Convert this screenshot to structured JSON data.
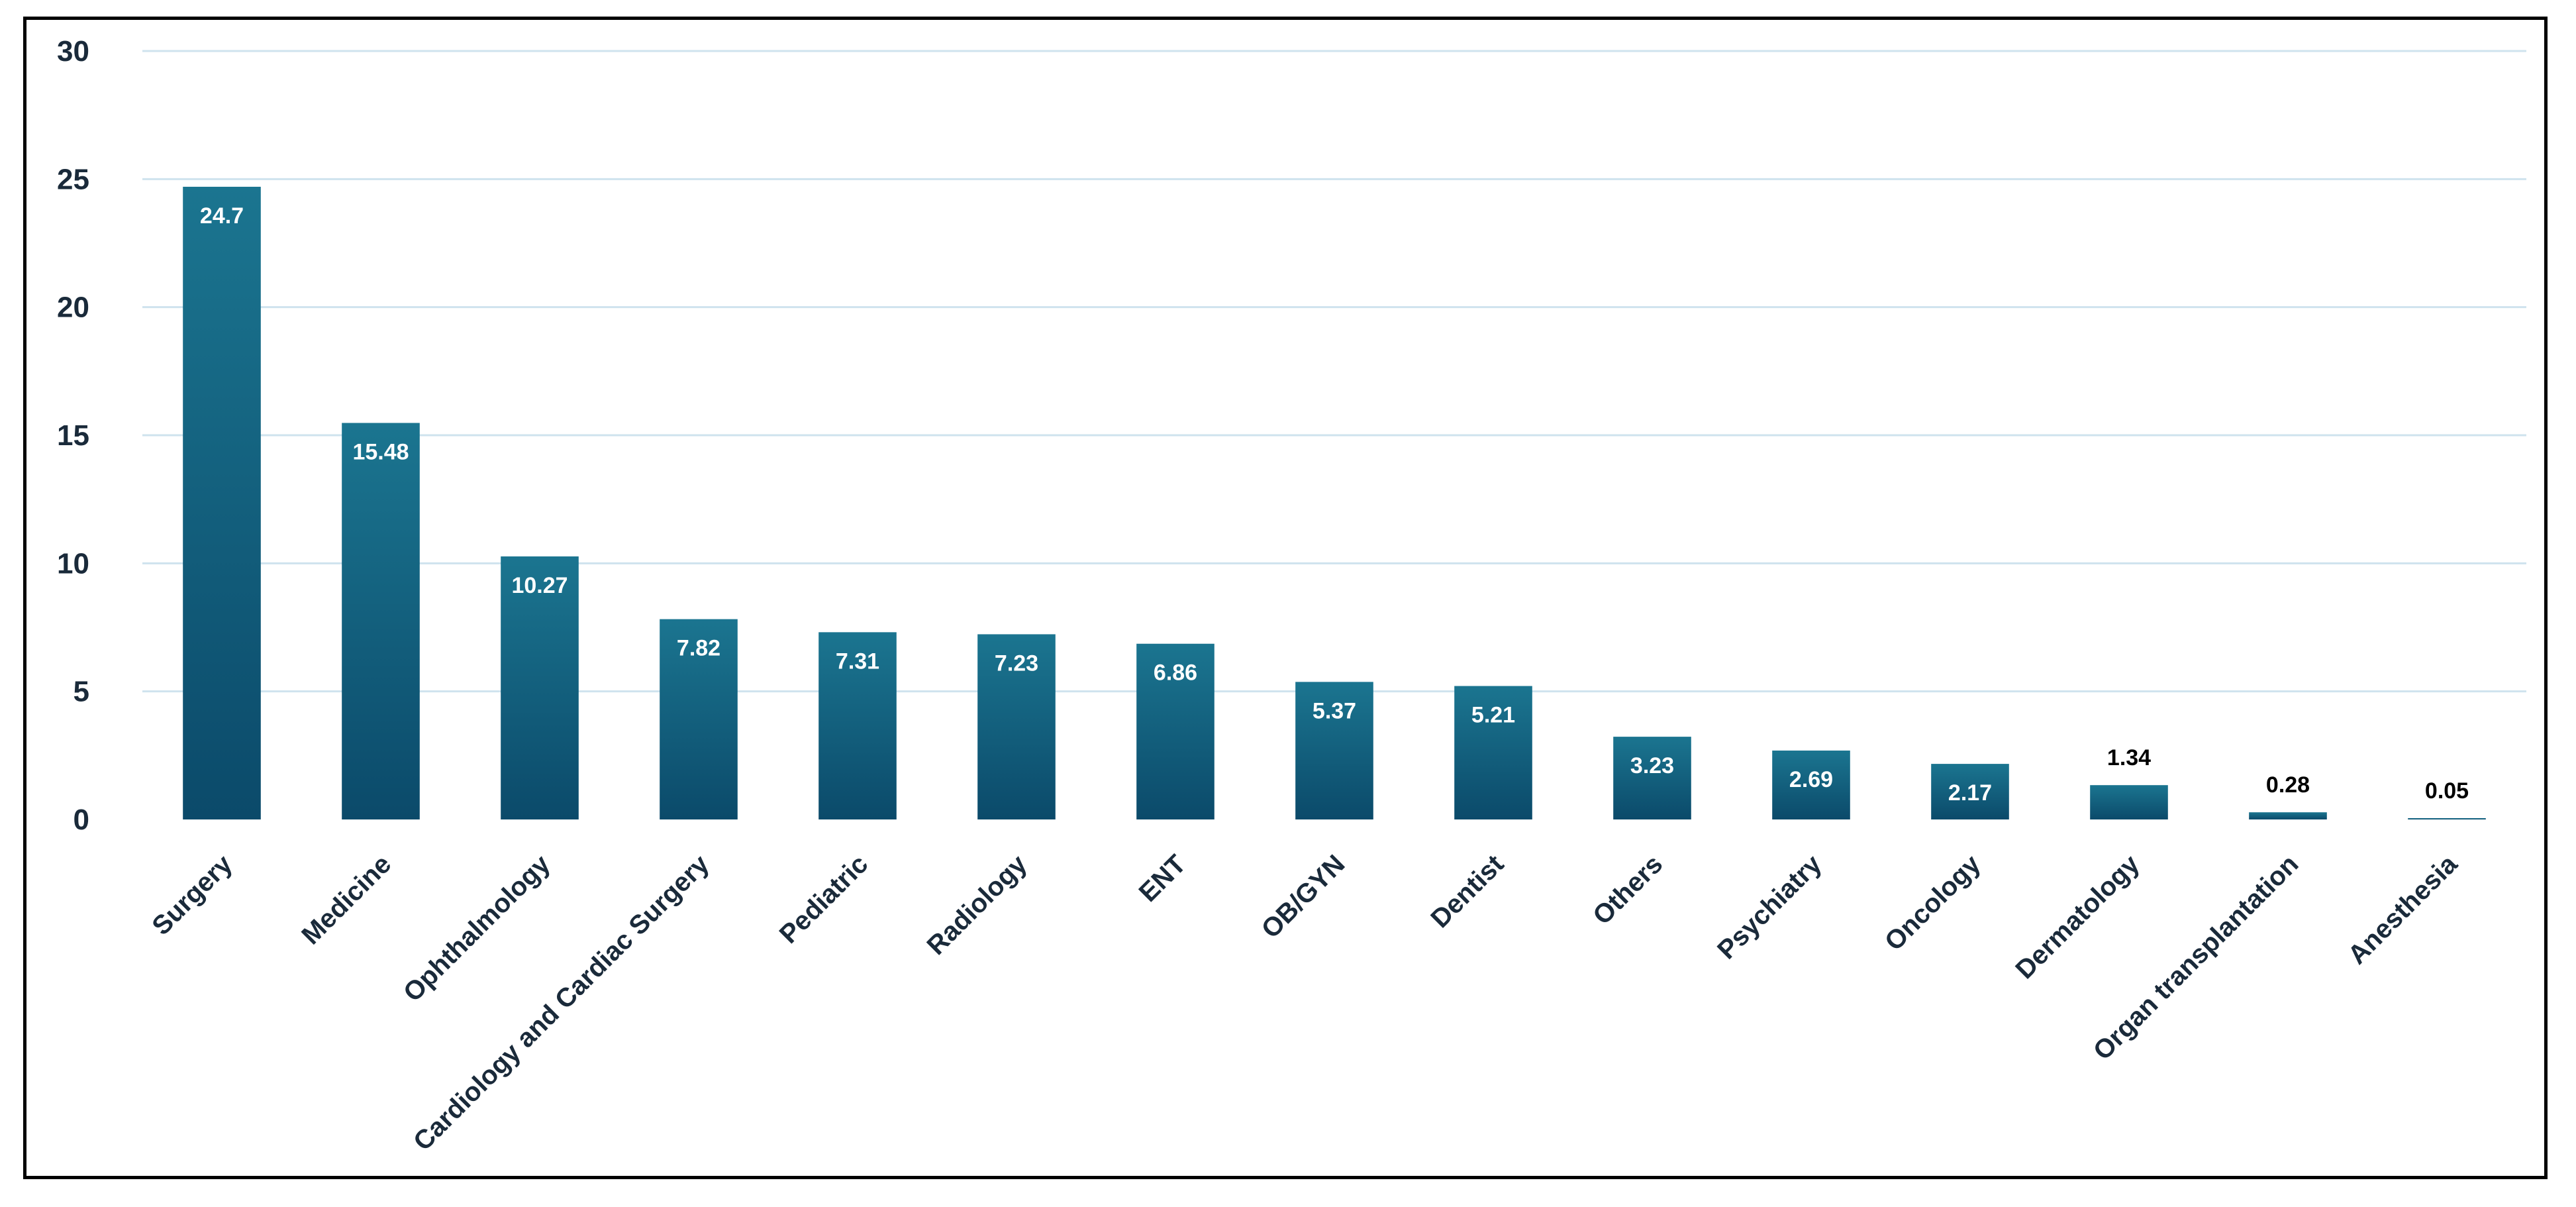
{
  "chart_data": {
    "type": "bar",
    "title": "",
    "xlabel": "",
    "ylabel": "",
    "ylim": [
      0,
      30
    ],
    "yticks": [
      0,
      5,
      10,
      15,
      20,
      25,
      30
    ],
    "grid": true,
    "legend": "none",
    "categories": [
      "Surgery",
      "Medicine",
      "Ophthalmology",
      "Cardiology and Cardiac Surgery",
      "Pediatric",
      "Radiology",
      "ENT",
      "OB/GYN",
      "Dentist",
      "Others",
      "Psychiatry",
      "Oncology",
      "Dermatology",
      "Organ transplantation",
      "Anesthesia"
    ],
    "values": [
      24.7,
      15.48,
      10.27,
      7.82,
      7.31,
      7.23,
      6.86,
      5.37,
      5.21,
      3.23,
      2.69,
      2.17,
      1.34,
      0.28,
      0.05
    ],
    "data_labels": [
      "24.7",
      "15.48",
      "10.27",
      "7.82",
      "7.31",
      "7.23",
      "6.86",
      "5.37",
      "5.21",
      "3.23",
      "2.69",
      "2.17",
      "1.34",
      "0.28",
      "0.05"
    ],
    "colors": {
      "bar_top": "#1b7590",
      "bar_bottom": "#0b4a6a",
      "grid": "#cfe3ee",
      "axis_text": "#1a2a3a",
      "inside_label": "#ffffff",
      "outside_label": "#000000"
    }
  }
}
